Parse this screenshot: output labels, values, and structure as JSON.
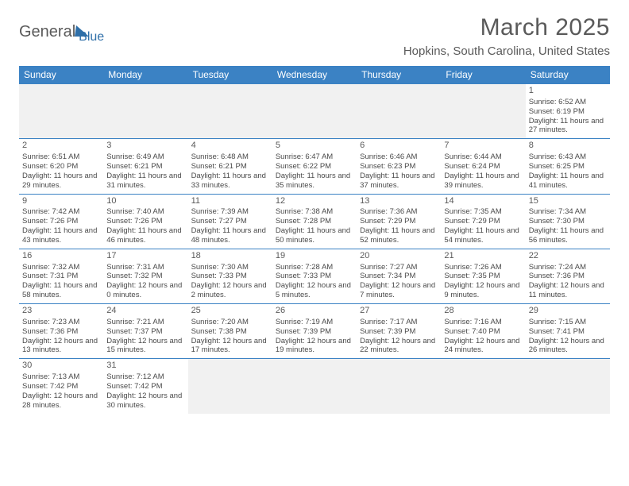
{
  "logo": {
    "text1": "General",
    "text2": "Blue"
  },
  "title": "March 2025",
  "location": "Hopkins, South Carolina, United States",
  "colors": {
    "header_bg": "#3b82c4",
    "header_fg": "#ffffff",
    "border": "#3b82c4",
    "text": "#5a5a5a",
    "cell_text": "#4a4a4a",
    "empty_bg": "#f1f1f1",
    "page_bg": "#ffffff"
  },
  "dow": [
    "Sunday",
    "Monday",
    "Tuesday",
    "Wednesday",
    "Thursday",
    "Friday",
    "Saturday"
  ],
  "weeks": [
    [
      null,
      null,
      null,
      null,
      null,
      null,
      {
        "n": "1",
        "sr": "6:52 AM",
        "ss": "6:19 PM",
        "dl": "11 hours and 27 minutes."
      }
    ],
    [
      {
        "n": "2",
        "sr": "6:51 AM",
        "ss": "6:20 PM",
        "dl": "11 hours and 29 minutes."
      },
      {
        "n": "3",
        "sr": "6:49 AM",
        "ss": "6:21 PM",
        "dl": "11 hours and 31 minutes."
      },
      {
        "n": "4",
        "sr": "6:48 AM",
        "ss": "6:21 PM",
        "dl": "11 hours and 33 minutes."
      },
      {
        "n": "5",
        "sr": "6:47 AM",
        "ss": "6:22 PM",
        "dl": "11 hours and 35 minutes."
      },
      {
        "n": "6",
        "sr": "6:46 AM",
        "ss": "6:23 PM",
        "dl": "11 hours and 37 minutes."
      },
      {
        "n": "7",
        "sr": "6:44 AM",
        "ss": "6:24 PM",
        "dl": "11 hours and 39 minutes."
      },
      {
        "n": "8",
        "sr": "6:43 AM",
        "ss": "6:25 PM",
        "dl": "11 hours and 41 minutes."
      }
    ],
    [
      {
        "n": "9",
        "sr": "7:42 AM",
        "ss": "7:26 PM",
        "dl": "11 hours and 43 minutes."
      },
      {
        "n": "10",
        "sr": "7:40 AM",
        "ss": "7:26 PM",
        "dl": "11 hours and 46 minutes."
      },
      {
        "n": "11",
        "sr": "7:39 AM",
        "ss": "7:27 PM",
        "dl": "11 hours and 48 minutes."
      },
      {
        "n": "12",
        "sr": "7:38 AM",
        "ss": "7:28 PM",
        "dl": "11 hours and 50 minutes."
      },
      {
        "n": "13",
        "sr": "7:36 AM",
        "ss": "7:29 PM",
        "dl": "11 hours and 52 minutes."
      },
      {
        "n": "14",
        "sr": "7:35 AM",
        "ss": "7:29 PM",
        "dl": "11 hours and 54 minutes."
      },
      {
        "n": "15",
        "sr": "7:34 AM",
        "ss": "7:30 PM",
        "dl": "11 hours and 56 minutes."
      }
    ],
    [
      {
        "n": "16",
        "sr": "7:32 AM",
        "ss": "7:31 PM",
        "dl": "11 hours and 58 minutes."
      },
      {
        "n": "17",
        "sr": "7:31 AM",
        "ss": "7:32 PM",
        "dl": "12 hours and 0 minutes."
      },
      {
        "n": "18",
        "sr": "7:30 AM",
        "ss": "7:33 PM",
        "dl": "12 hours and 2 minutes."
      },
      {
        "n": "19",
        "sr": "7:28 AM",
        "ss": "7:33 PM",
        "dl": "12 hours and 5 minutes."
      },
      {
        "n": "20",
        "sr": "7:27 AM",
        "ss": "7:34 PM",
        "dl": "12 hours and 7 minutes."
      },
      {
        "n": "21",
        "sr": "7:26 AM",
        "ss": "7:35 PM",
        "dl": "12 hours and 9 minutes."
      },
      {
        "n": "22",
        "sr": "7:24 AM",
        "ss": "7:36 PM",
        "dl": "12 hours and 11 minutes."
      }
    ],
    [
      {
        "n": "23",
        "sr": "7:23 AM",
        "ss": "7:36 PM",
        "dl": "12 hours and 13 minutes."
      },
      {
        "n": "24",
        "sr": "7:21 AM",
        "ss": "7:37 PM",
        "dl": "12 hours and 15 minutes."
      },
      {
        "n": "25",
        "sr": "7:20 AM",
        "ss": "7:38 PM",
        "dl": "12 hours and 17 minutes."
      },
      {
        "n": "26",
        "sr": "7:19 AM",
        "ss": "7:39 PM",
        "dl": "12 hours and 19 minutes."
      },
      {
        "n": "27",
        "sr": "7:17 AM",
        "ss": "7:39 PM",
        "dl": "12 hours and 22 minutes."
      },
      {
        "n": "28",
        "sr": "7:16 AM",
        "ss": "7:40 PM",
        "dl": "12 hours and 24 minutes."
      },
      {
        "n": "29",
        "sr": "7:15 AM",
        "ss": "7:41 PM",
        "dl": "12 hours and 26 minutes."
      }
    ],
    [
      {
        "n": "30",
        "sr": "7:13 AM",
        "ss": "7:42 PM",
        "dl": "12 hours and 28 minutes."
      },
      {
        "n": "31",
        "sr": "7:12 AM",
        "ss": "7:42 PM",
        "dl": "12 hours and 30 minutes."
      },
      null,
      null,
      null,
      null,
      null
    ]
  ],
  "labels": {
    "sunrise": "Sunrise:",
    "sunset": "Sunset:",
    "daylight": "Daylight:"
  }
}
